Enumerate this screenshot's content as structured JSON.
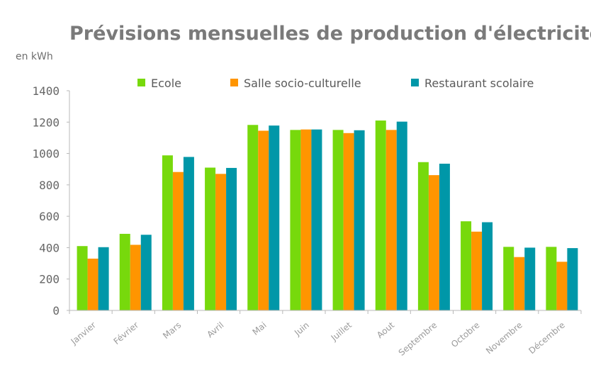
{
  "chart_data": {
    "type": "bar",
    "title": "Prévisions mensuelles de production d'électricité",
    "unit_label": "en kWh",
    "xlabel": "",
    "ylabel": "",
    "ylim": [
      0,
      1400
    ],
    "yticks": [
      "0",
      "200",
      "400",
      "600",
      "800",
      "1000",
      "1200",
      "1400"
    ],
    "grid": false,
    "legend_position": "top",
    "categories": [
      "Janvier",
      "Février",
      "Mars",
      "Avril",
      "Mai",
      "Juin",
      "Juillet",
      "Aout",
      "Septembre",
      "Octobre",
      "Novembre",
      "Décembre"
    ],
    "series": [
      {
        "name": "Ecole",
        "color": "#77d90c",
        "values": [
          410,
          488,
          988,
          910,
          1182,
          1150,
          1150,
          1210,
          945,
          568,
          405,
          405
        ]
      },
      {
        "name": "Salle socio-culturelle",
        "color": "#ff9500",
        "values": [
          330,
          418,
          882,
          870,
          1145,
          1153,
          1130,
          1150,
          862,
          502,
          340,
          310
        ]
      },
      {
        "name": "Restaurant scolaire",
        "color": "#0097a8",
        "values": [
          403,
          482,
          978,
          908,
          1178,
          1153,
          1148,
          1203,
          935,
          562,
          400,
          397
        ]
      }
    ]
  }
}
